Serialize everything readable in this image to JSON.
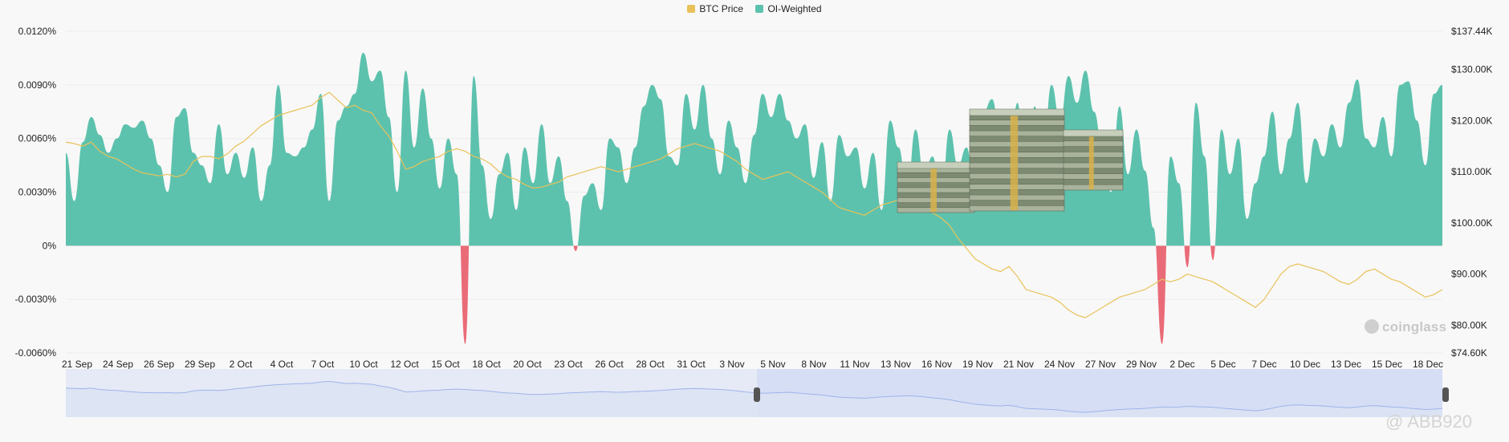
{
  "legend": {
    "btc_label": "BTC Price",
    "oi_label": "OI-Weighted"
  },
  "colors": {
    "btc": "#e9c25a",
    "oi_pos": "#5dc2ad",
    "oi_neg": "#ea6b78",
    "navigator_line": "#9fb3e8"
  },
  "watermark": "coinglass",
  "credit": "@ ABB920",
  "chart_data": {
    "type": "area",
    "x_labels": [
      "21 Sep",
      "24 Sep",
      "26 Sep",
      "29 Sep",
      "2 Oct",
      "4 Oct",
      "7 Oct",
      "10 Oct",
      "12 Oct",
      "15 Oct",
      "18 Oct",
      "20 Oct",
      "23 Oct",
      "26 Oct",
      "28 Oct",
      "31 Oct",
      "3 Nov",
      "5 Nov",
      "8 Nov",
      "11 Nov",
      "13 Nov",
      "16 Nov",
      "19 Nov",
      "21 Nov",
      "24 Nov",
      "27 Nov",
      "29 Nov",
      "2 Dec",
      "5 Dec",
      "7 Dec",
      "10 Dec",
      "13 Dec",
      "15 Dec",
      "18 Dec"
    ],
    "y_left": {
      "ticks": [
        "0.0120%",
        "0.0090%",
        "0.0060%",
        "0.0030%",
        "0%",
        "-0.0030%",
        "-0.0060%"
      ],
      "min": -0.006,
      "max": 0.012
    },
    "y_right": {
      "ticks": [
        "$137.44K",
        "$130.00K",
        "$120.00K",
        "$110.00K",
        "$100.00K",
        "$90.00K",
        "$80.00K",
        "$74.60K"
      ],
      "min": 74.6,
      "max": 137.44
    },
    "series": [
      {
        "name": "OI-Weighted",
        "axis": "left",
        "unit": "%",
        "values": [
          0.0052,
          0.0025,
          0.0058,
          0.0072,
          0.0062,
          0.0052,
          0.006,
          0.0068,
          0.0066,
          0.007,
          0.006,
          0.0045,
          0.003,
          0.0072,
          0.0077,
          0.0052,
          0.0045,
          0.0035,
          0.0068,
          0.004,
          0.0052,
          0.0038,
          0.0055,
          0.0025,
          0.0045,
          0.009,
          0.0052,
          0.005,
          0.0055,
          0.0065,
          0.0085,
          0.0025,
          0.007,
          0.0078,
          0.0085,
          0.0108,
          0.0092,
          0.0098,
          0.0072,
          0.003,
          0.0098,
          0.0055,
          0.0088,
          0.006,
          0.0032,
          0.006,
          0.004,
          -0.0055,
          0.0095,
          0.0045,
          0.0015,
          0.004,
          0.0052,
          0.002,
          0.0055,
          0.0035,
          0.0068,
          0.0035,
          0.005,
          0.0025,
          -0.0003,
          0.0028,
          0.0035,
          0.002,
          0.006,
          0.0055,
          0.0035,
          0.0055,
          0.0078,
          0.009,
          0.0082,
          0.005,
          0.0045,
          0.0085,
          0.0065,
          0.009,
          0.006,
          0.004,
          0.007,
          0.0055,
          0.0035,
          0.0062,
          0.0085,
          0.0072,
          0.0085,
          0.007,
          0.006,
          0.0068,
          0.0038,
          0.0058,
          0.0025,
          0.0062,
          0.005,
          0.0055,
          0.0032,
          0.0052,
          0.002,
          0.007,
          0.0055,
          0.003,
          0.0065,
          0.004,
          0.005,
          0.0025,
          0.0065,
          0.0045,
          0.0055,
          0.003,
          0.0075,
          0.0082,
          0.006,
          0.0045,
          0.008,
          0.002,
          0.0078,
          0.005,
          0.009,
          0.007,
          0.0095,
          0.008,
          0.0098,
          0.0075,
          0.0055,
          0.003,
          0.0078,
          0.004,
          0.0065,
          0.0042,
          0.001,
          -0.0055,
          0.005,
          0.0035,
          -0.0012,
          0.008,
          0.005,
          -0.0008,
          0.0065,
          0.004,
          0.006,
          0.0015,
          0.0035,
          0.005,
          0.0075,
          0.004,
          0.006,
          0.008,
          0.0035,
          0.006,
          0.005,
          0.0068,
          0.0055,
          0.008,
          0.0093,
          0.006,
          0.0055,
          0.0072,
          0.005,
          0.009,
          0.0092,
          0.007,
          0.0045,
          0.0085,
          0.009
        ]
      },
      {
        "name": "BTC Price",
        "axis": "right",
        "unit": "$K",
        "values": [
          115.8,
          115.5,
          115.0,
          115.8,
          114.0,
          113.0,
          112.5,
          111.5,
          110.5,
          109.8,
          109.5,
          109.2,
          109.5,
          109.0,
          109.5,
          112.0,
          113.0,
          113.0,
          112.5,
          113.5,
          115.0,
          116.0,
          117.5,
          119.0,
          120.0,
          121.0,
          121.5,
          122.0,
          122.5,
          123.0,
          124.5,
          125.5,
          124.0,
          122.5,
          123.0,
          122.0,
          121.5,
          119.0,
          117.0,
          114.0,
          110.5,
          111.0,
          112.0,
          112.5,
          113.0,
          114.0,
          114.5,
          114.0,
          113.0,
          112.5,
          111.5,
          110.0,
          109.0,
          108.5,
          107.5,
          106.8,
          107.0,
          107.5,
          108.0,
          109.0,
          109.5,
          110.0,
          110.5,
          111.0,
          110.5,
          110.0,
          110.5,
          111.0,
          111.5,
          112.0,
          112.5,
          113.5,
          114.5,
          115.0,
          115.5,
          115.0,
          114.5,
          114.0,
          113.0,
          112.0,
          110.5,
          109.5,
          108.5,
          109.0,
          109.5,
          110.0,
          109.0,
          108.0,
          107.0,
          106.0,
          104.5,
          103.0,
          102.5,
          102.0,
          101.5,
          102.5,
          103.5,
          104.0,
          104.5,
          105.0,
          104.5,
          103.5,
          102.0,
          101.0,
          99.5,
          97.0,
          95.0,
          93.0,
          92.0,
          91.0,
          90.5,
          91.5,
          89.5,
          87.0,
          86.5,
          86.0,
          85.5,
          84.5,
          83.0,
          82.0,
          81.5,
          82.5,
          83.5,
          84.5,
          85.5,
          86.0,
          86.5,
          87.0,
          88.0,
          89.0,
          88.5,
          89.0,
          90.0,
          89.5,
          89.0,
          88.5,
          87.5,
          86.5,
          85.5,
          84.5,
          83.5,
          85.0,
          87.5,
          90.0,
          91.5,
          92.0,
          91.5,
          91.0,
          90.5,
          89.5,
          88.5,
          88.0,
          89.0,
          90.5,
          91.0,
          90.0,
          89.0,
          88.5,
          87.5,
          86.5,
          85.5,
          86.0,
          87.0
        ]
      }
    ]
  }
}
